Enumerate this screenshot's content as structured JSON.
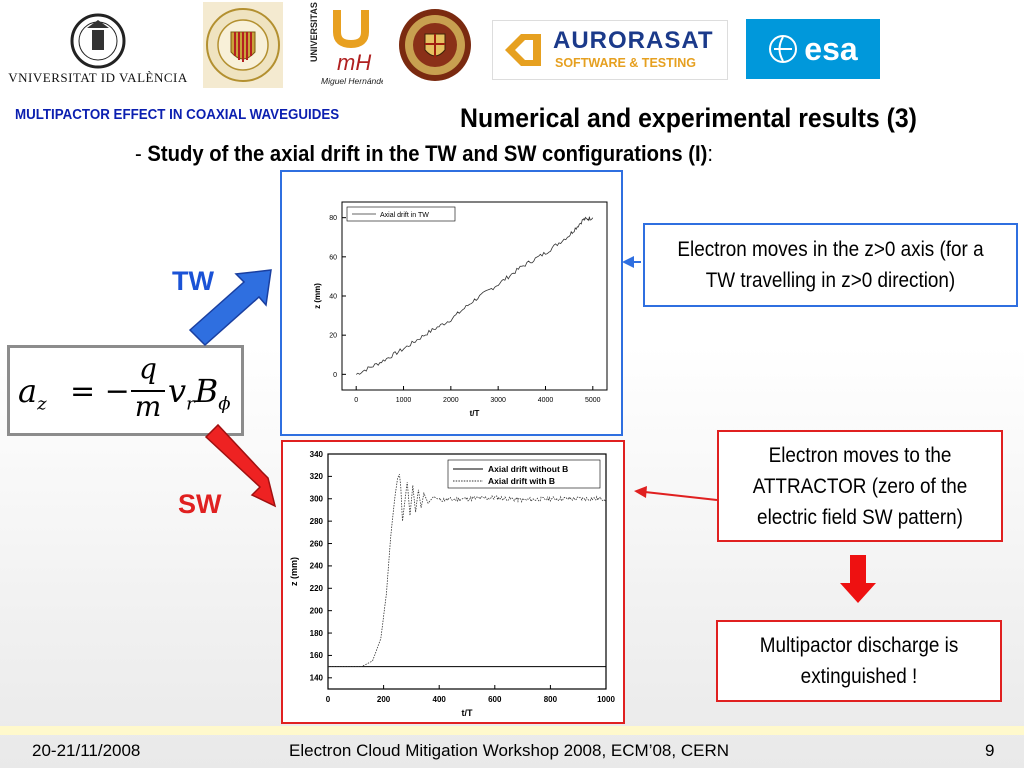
{
  "logos": {
    "uv_text": "VNIVERSITAT ID VALÈNCIA",
    "upv_ring": "UNIVERSIDAD POLITECNICA VALENCIA",
    "umh_vertical": "UNIVERSITAS",
    "umh_name": "Miguel Hernández",
    "aurorasat_name": "AURORASAT",
    "aurorasat_tag": "SOFTWARE & TESTING",
    "esa_name": "esa"
  },
  "header": {
    "section_title": "MULTIPACTOR EFFECT IN COAXIAL WAVEGUIDES",
    "slide_title": "Numerical and experimental results (3)",
    "subtitle_dash": "- ",
    "subtitle_bold": "Study of the axial drift in the TW and SW configurations (I)",
    "subtitle_colon": ":"
  },
  "labels": {
    "tw": "TW",
    "sw": "SW"
  },
  "equation": {
    "lhs": "a",
    "lhs_sub": "z",
    "eq": "= −",
    "num": "q",
    "den": "m",
    "v": "v",
    "v_sub": "r",
    "b": "B",
    "b_sub": "ϕ"
  },
  "callouts": {
    "tw": "Electron moves in the z>0 axis (for a TW travelling in z>0 direction)",
    "sw": "Electron moves to the ATTRACTOR (zero of the electric field SW pattern)",
    "result": "Multipactor discharge is extinguished !"
  },
  "colors": {
    "blue": "#2f6fe0",
    "red": "#e02020",
    "title_blue": "#0b1fb0",
    "esa_bg": "#0098db"
  },
  "chart_data": [
    {
      "type": "line",
      "title": "",
      "xlabel": "t/T",
      "ylabel": "z (mm)",
      "xlim": [
        -300,
        5300
      ],
      "ylim": [
        -8,
        88
      ],
      "xticks": [
        0,
        1000,
        2000,
        3000,
        4000,
        5000
      ],
      "yticks": [
        0,
        20,
        40,
        60,
        80
      ],
      "legend": "top-left",
      "series": [
        {
          "name": "Axial drift in TW",
          "x": [
            0,
            500,
            1000,
            1500,
            2000,
            2500,
            3000,
            3500,
            4000,
            4500,
            4800,
            5000
          ],
          "y": [
            0,
            6,
            13,
            21,
            28,
            38,
            46,
            55,
            62,
            71,
            79,
            80
          ]
        }
      ]
    },
    {
      "type": "line",
      "title": "",
      "xlabel": "t/T",
      "ylabel": "z (mm)",
      "xlim": [
        0,
        1000
      ],
      "ylim": [
        130,
        340
      ],
      "xticks": [
        0,
        200,
        400,
        600,
        800,
        1000
      ],
      "yticks": [
        140,
        160,
        180,
        200,
        220,
        240,
        260,
        280,
        300,
        320,
        340
      ],
      "legend": "top-right",
      "series": [
        {
          "name": "Axial drift without B",
          "x": [
            0,
            1000
          ],
          "y": [
            150,
            150
          ]
        },
        {
          "name": "Axial drift with B",
          "x": [
            0,
            120,
            160,
            190,
            210,
            225,
            240,
            250,
            257,
            262,
            268,
            275,
            285,
            295,
            305,
            315,
            325,
            335,
            345,
            360,
            380,
            400,
            500,
            600,
            700,
            800,
            900,
            1000
          ],
          "y": [
            150,
            150,
            155,
            175,
            215,
            265,
            300,
            318,
            322,
            310,
            280,
            295,
            315,
            285,
            312,
            288,
            308,
            292,
            305,
            296,
            302,
            299,
            300,
            301,
            299,
            300,
            300,
            300
          ]
        }
      ]
    }
  ],
  "footer": {
    "date": "20-21/11/2008",
    "event": "Electron Cloud Mitigation Workshop 2008, ECM’08, CERN",
    "page": "9"
  }
}
